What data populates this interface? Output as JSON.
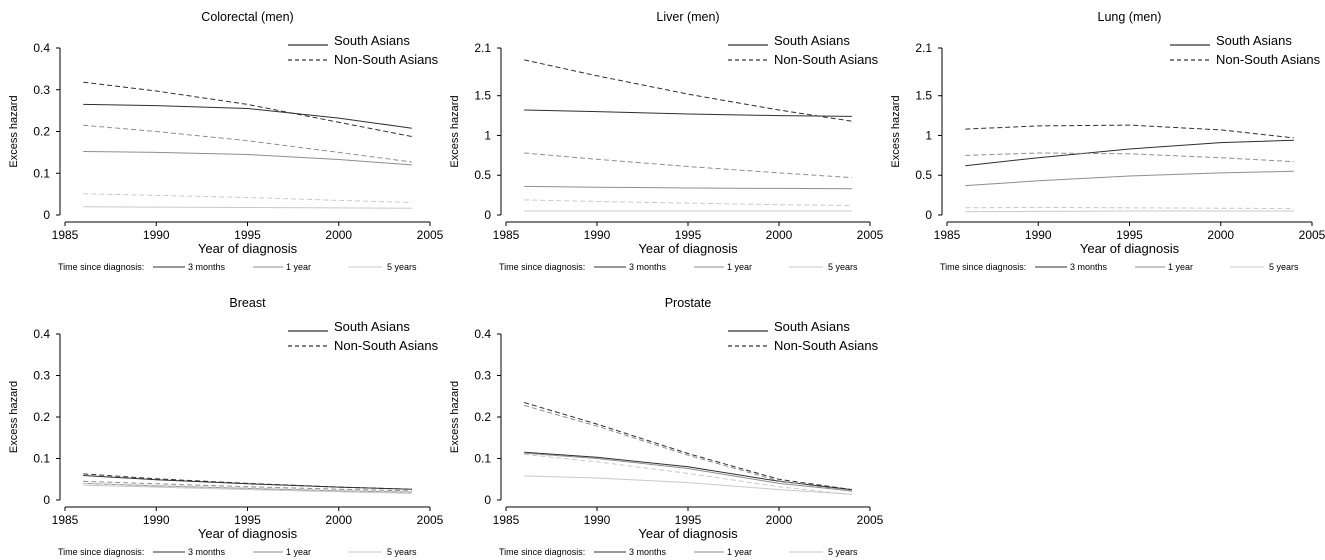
{
  "chart_data": [
    {
      "type": "line",
      "title": "Colorectal (men)",
      "xlabel": "Year of diagnosis",
      "ylabel": "Excess hazard",
      "xlim": [
        1985,
        2005
      ],
      "ylim": [
        0,
        0.4
      ],
      "xticks": [
        "1985",
        "1990",
        "1995",
        "2000",
        "2005"
      ],
      "yticks": [
        "0",
        "0.1",
        "0.2",
        "0.3",
        "0.4"
      ],
      "x": [
        1986,
        1990,
        1995,
        2000,
        2004
      ],
      "series": [
        {
          "group": "South Asians",
          "time": "3 months",
          "values": [
            0.265,
            0.262,
            0.255,
            0.232,
            0.208
          ]
        },
        {
          "group": "Non-South Asians",
          "time": "3 months",
          "values": [
            0.318,
            0.297,
            0.265,
            0.222,
            0.188
          ]
        },
        {
          "group": "South Asians",
          "time": "1 year",
          "values": [
            0.152,
            0.15,
            0.145,
            0.133,
            0.12
          ]
        },
        {
          "group": "Non-South Asians",
          "time": "1 year",
          "values": [
            0.215,
            0.2,
            0.178,
            0.15,
            0.127
          ]
        },
        {
          "group": "South Asians",
          "time": "5 years",
          "values": [
            0.02,
            0.019,
            0.018,
            0.017,
            0.016
          ]
        },
        {
          "group": "Non-South Asians",
          "time": "5 years",
          "values": [
            0.051,
            0.047,
            0.042,
            0.035,
            0.03
          ]
        }
      ]
    },
    {
      "type": "line",
      "title": "Liver (men)",
      "xlabel": "Year of diagnosis",
      "ylabel": "Excess hazard",
      "xlim": [
        1985,
        2005
      ],
      "ylim": [
        0,
        2.1
      ],
      "xticks": [
        "1985",
        "1990",
        "1995",
        "2000",
        "2005"
      ],
      "yticks": [
        "0",
        "0.5",
        "1",
        "1.5",
        "2.1"
      ],
      "x": [
        1986,
        1990,
        1995,
        2000,
        2004
      ],
      "series": [
        {
          "group": "South Asians",
          "time": "3 months",
          "values": [
            1.32,
            1.3,
            1.27,
            1.25,
            1.24
          ]
        },
        {
          "group": "Non-South Asians",
          "time": "3 months",
          "values": [
            1.95,
            1.75,
            1.52,
            1.32,
            1.18
          ]
        },
        {
          "group": "South Asians",
          "time": "1 year",
          "values": [
            0.36,
            0.35,
            0.34,
            0.335,
            0.33
          ]
        },
        {
          "group": "Non-South Asians",
          "time": "1 year",
          "values": [
            0.78,
            0.7,
            0.61,
            0.53,
            0.47
          ]
        },
        {
          "group": "South Asians",
          "time": "5 years",
          "values": [
            0.05,
            0.05,
            0.05,
            0.05,
            0.05
          ]
        },
        {
          "group": "Non-South Asians",
          "time": "5 years",
          "values": [
            0.19,
            0.17,
            0.15,
            0.13,
            0.12
          ]
        }
      ]
    },
    {
      "type": "line",
      "title": "Lung (men)",
      "xlabel": "Year of diagnosis",
      "ylabel": "Excess hazard",
      "xlim": [
        1985,
        2005
      ],
      "ylim": [
        0,
        2.1
      ],
      "xticks": [
        "1985",
        "1990",
        "1995",
        "2000",
        "2005"
      ],
      "yticks": [
        "0",
        "0.5",
        "1",
        "1.5",
        "2.1"
      ],
      "x": [
        1986,
        1990,
        1995,
        2000,
        2004
      ],
      "series": [
        {
          "group": "South Asians",
          "time": "3 months",
          "values": [
            0.62,
            0.72,
            0.83,
            0.91,
            0.94
          ]
        },
        {
          "group": "Non-South Asians",
          "time": "3 months",
          "values": [
            1.08,
            1.12,
            1.13,
            1.07,
            0.97
          ]
        },
        {
          "group": "South Asians",
          "time": "1 year",
          "values": [
            0.37,
            0.43,
            0.49,
            0.53,
            0.55
          ]
        },
        {
          "group": "Non-South Asians",
          "time": "1 year",
          "values": [
            0.75,
            0.78,
            0.77,
            0.72,
            0.67
          ]
        },
        {
          "group": "South Asians",
          "time": "5 years",
          "values": [
            0.04,
            0.045,
            0.05,
            0.05,
            0.05
          ]
        },
        {
          "group": "Non-South Asians",
          "time": "5 years",
          "values": [
            0.09,
            0.095,
            0.09,
            0.085,
            0.08
          ]
        }
      ]
    },
    {
      "type": "line",
      "title": "Breast",
      "xlabel": "Year of diagnosis",
      "ylabel": "Excess hazard",
      "xlim": [
        1985,
        2005
      ],
      "ylim": [
        0,
        0.4
      ],
      "xticks": [
        "1985",
        "1990",
        "1995",
        "2000",
        "2005"
      ],
      "yticks": [
        "0",
        "0.1",
        "0.2",
        "0.3",
        "0.4"
      ],
      "x": [
        1986,
        1990,
        1995,
        2000,
        2004
      ],
      "series": [
        {
          "group": "South Asians",
          "time": "3 months",
          "values": [
            0.059,
            0.049,
            0.039,
            0.031,
            0.026
          ]
        },
        {
          "group": "Non-South Asians",
          "time": "3 months",
          "values": [
            0.063,
            0.051,
            0.04,
            0.031,
            0.026
          ]
        },
        {
          "group": "South Asians",
          "time": "1 year",
          "values": [
            0.04,
            0.034,
            0.028,
            0.022,
            0.019
          ]
        },
        {
          "group": "Non-South Asians",
          "time": "1 year",
          "values": [
            0.045,
            0.039,
            0.032,
            0.026,
            0.022
          ]
        },
        {
          "group": "South Asians",
          "time": "5 years",
          "values": [
            0.036,
            0.031,
            0.025,
            0.02,
            0.016
          ]
        },
        {
          "group": "Non-South Asians",
          "time": "5 years",
          "values": [
            0.04,
            0.035,
            0.029,
            0.023,
            0.019
          ]
        }
      ]
    },
    {
      "type": "line",
      "title": "Prostate",
      "xlabel": "Year of diagnosis",
      "ylabel": "Excess hazard",
      "xlim": [
        1985,
        2005
      ],
      "ylim": [
        0,
        0.4
      ],
      "xticks": [
        "1985",
        "1990",
        "1995",
        "2000",
        "2005"
      ],
      "yticks": [
        "0",
        "0.1",
        "0.2",
        "0.3",
        "0.4"
      ],
      "x": [
        1986,
        1990,
        1995,
        2000,
        2004
      ],
      "series": [
        {
          "group": "South Asians",
          "time": "3 months",
          "values": [
            0.115,
            0.103,
            0.08,
            0.045,
            0.025
          ]
        },
        {
          "group": "Non-South Asians",
          "time": "3 months",
          "values": [
            0.235,
            0.183,
            0.112,
            0.05,
            0.025
          ]
        },
        {
          "group": "South Asians",
          "time": "1 year",
          "values": [
            0.113,
            0.1,
            0.076,
            0.04,
            0.022
          ]
        },
        {
          "group": "Non-South Asians",
          "time": "1 year",
          "values": [
            0.228,
            0.178,
            0.108,
            0.046,
            0.021
          ]
        },
        {
          "group": "South Asians",
          "time": "5 years",
          "values": [
            0.058,
            0.053,
            0.042,
            0.025,
            0.014
          ]
        },
        {
          "group": "Non-South Asians",
          "time": "5 years",
          "values": [
            0.11,
            0.092,
            0.064,
            0.032,
            0.013
          ]
        }
      ]
    }
  ],
  "legend": {
    "groups": [
      {
        "label": "South Asians",
        "dash": "solid"
      },
      {
        "label": "Non-South Asians",
        "dash": "dashed"
      }
    ],
    "time_title": "Time since diagnosis:",
    "times": [
      {
        "label": "3 months",
        "color": "#2f2f2f"
      },
      {
        "label": "1 year",
        "color": "#8e8e8e"
      },
      {
        "label": "5 years",
        "color": "#c9c9c9"
      }
    ]
  }
}
